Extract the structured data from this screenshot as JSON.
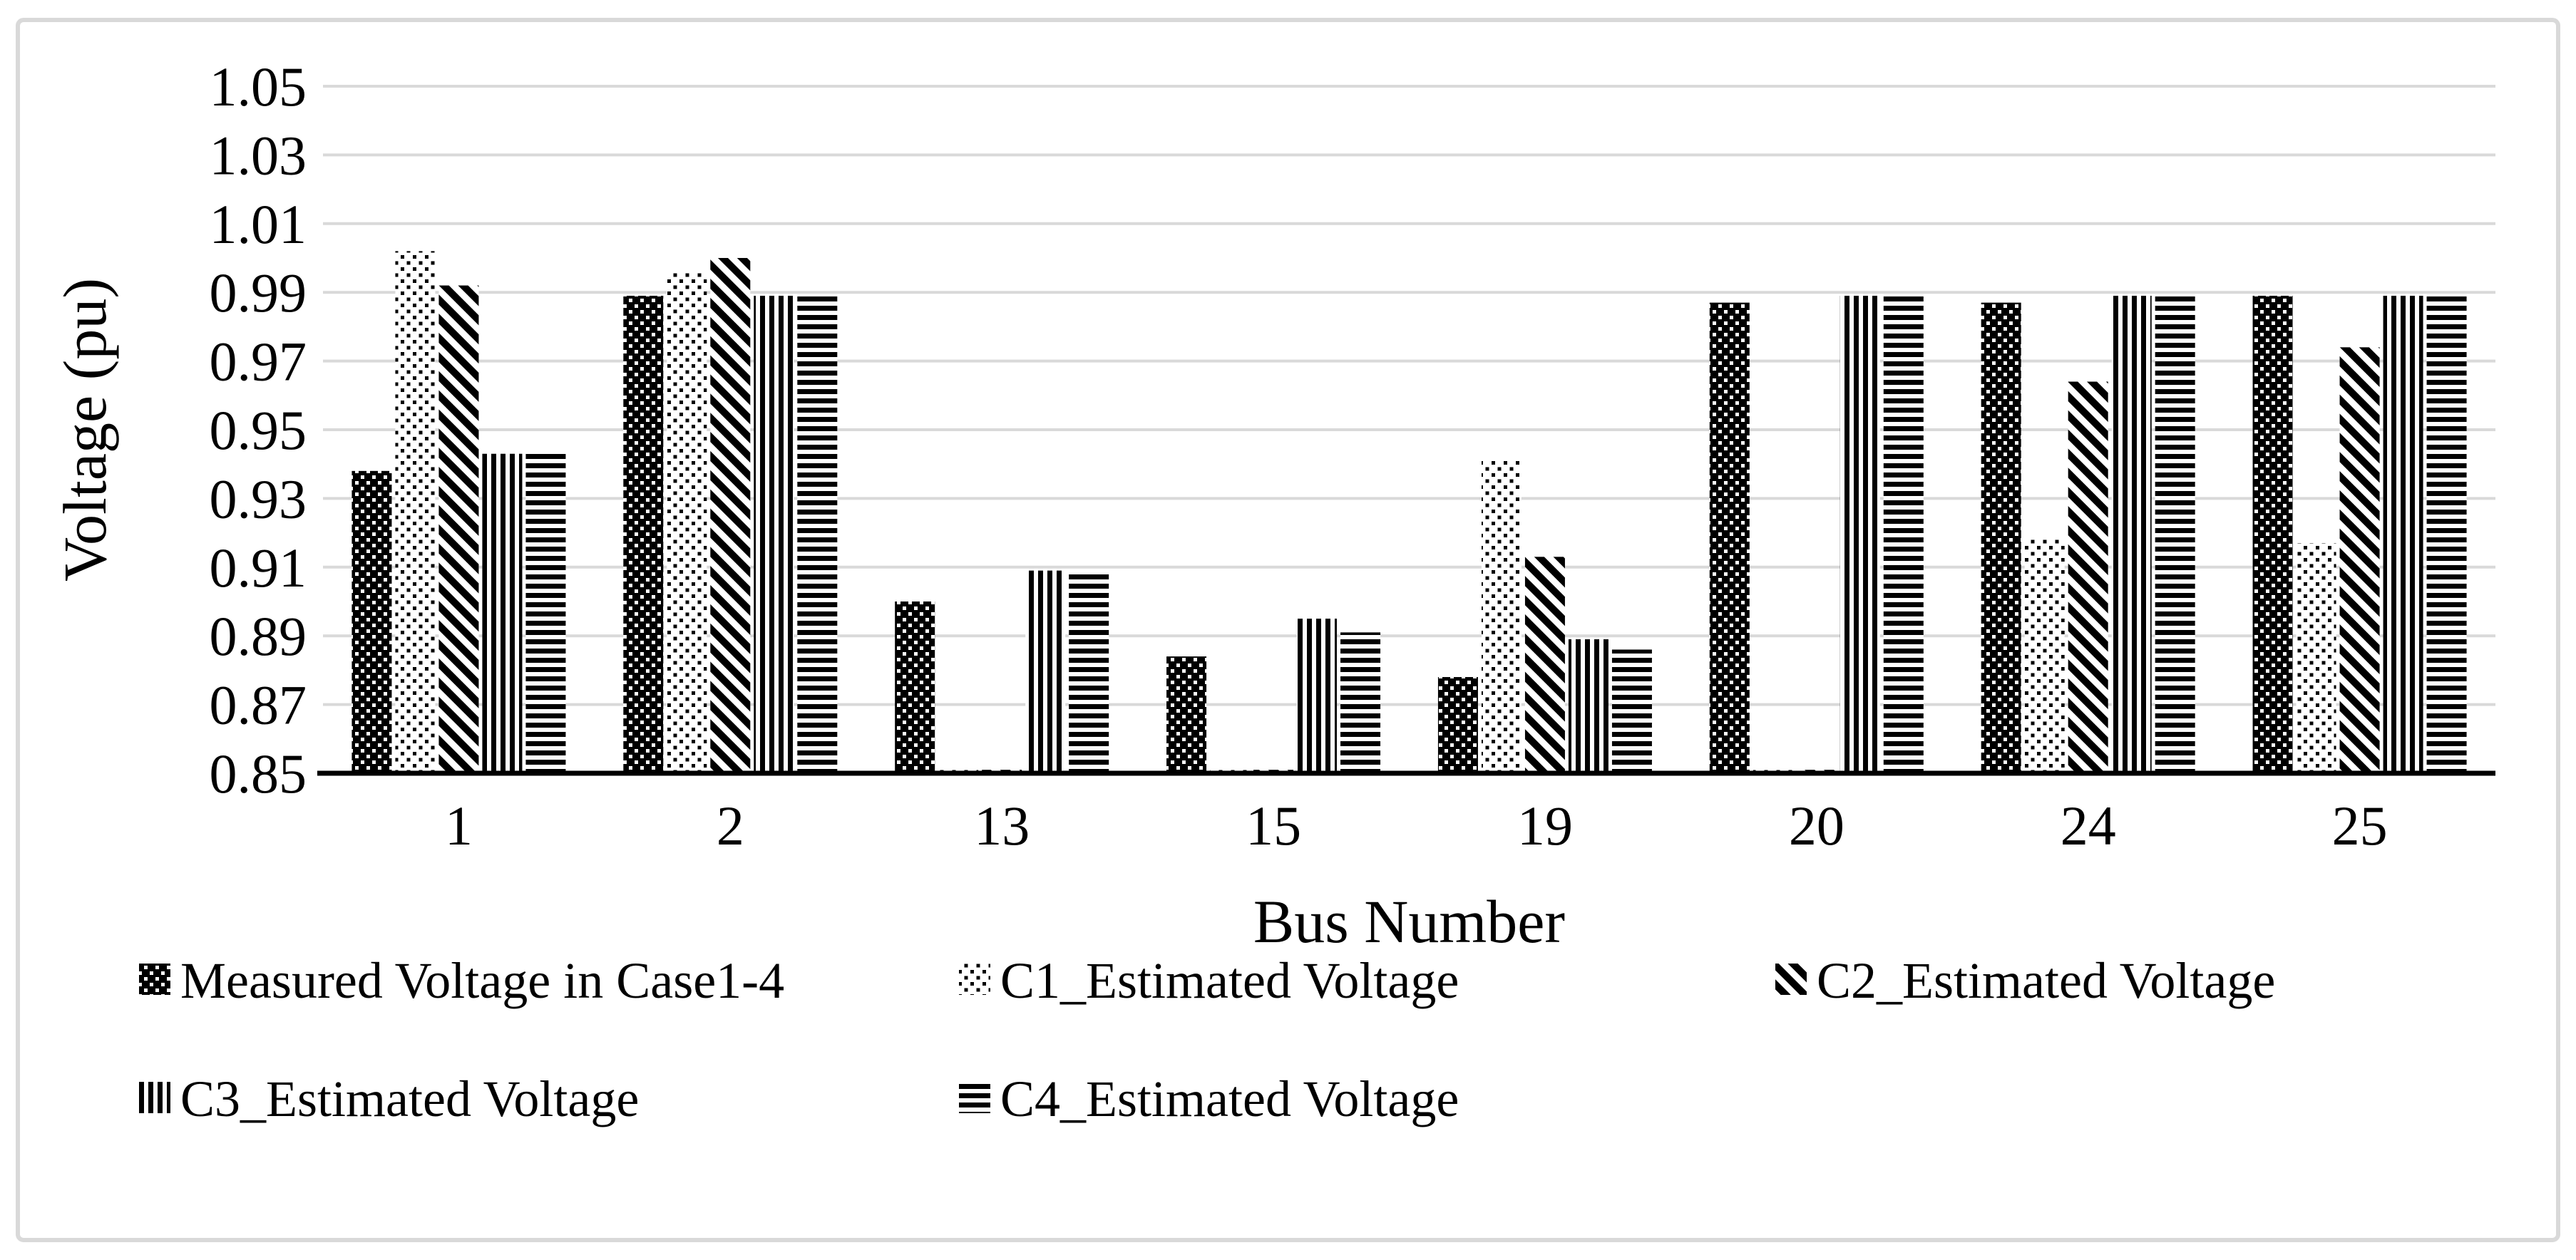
{
  "figure": {
    "border_color": "#d9d9d9",
    "background_color": "#ffffff"
  },
  "chart_data": {
    "type": "bar",
    "title": "",
    "xlabel": "Bus Number",
    "ylabel": "Voltage (pu)",
    "ylim": [
      0.85,
      1.05
    ],
    "ytick_step": 0.02,
    "yticklabels": [
      "0.85",
      "0.87",
      "0.89",
      "0.91",
      "0.93",
      "0.95",
      "0.97",
      "0.99",
      "1.01",
      "1.03",
      "1.05"
    ],
    "categories": [
      "1",
      "2",
      "13",
      "15",
      "19",
      "20",
      "24",
      "25"
    ],
    "series": [
      {
        "name": "Measured Voltage in Case1-4",
        "pattern": "dark-dotted",
        "values": [
          0.938,
          0.989,
          0.9,
          0.884,
          0.878,
          0.987,
          0.987,
          0.989
        ]
      },
      {
        "name": "C1_Estimated Voltage",
        "pattern": "light-dotted",
        "values": [
          1.002,
          0.996,
          0.851,
          0.851,
          0.941,
          0.851,
          0.918,
          0.917
        ]
      },
      {
        "name": "C2_Estimated Voltage",
        "pattern": "diagonal-stripes",
        "values": [
          0.992,
          1.0,
          0.851,
          0.851,
          0.913,
          0.851,
          0.964,
          0.974
        ]
      },
      {
        "name": "C3_Estimated Voltage",
        "pattern": "vertical-stripes",
        "values": [
          0.943,
          0.989,
          0.909,
          0.895,
          0.889,
          0.989,
          0.989,
          0.989
        ]
      },
      {
        "name": "C4_Estimated Voltage",
        "pattern": "horizontal-stripes",
        "values": [
          0.943,
          0.989,
          0.908,
          0.891,
          0.886,
          0.989,
          0.989,
          0.989
        ]
      }
    ],
    "grid": true,
    "legend_position": "bottom",
    "colors": {
      "bars": "#000000",
      "gridlines": "#d9d9d9",
      "axis": "#000000",
      "text": "#000000"
    }
  }
}
